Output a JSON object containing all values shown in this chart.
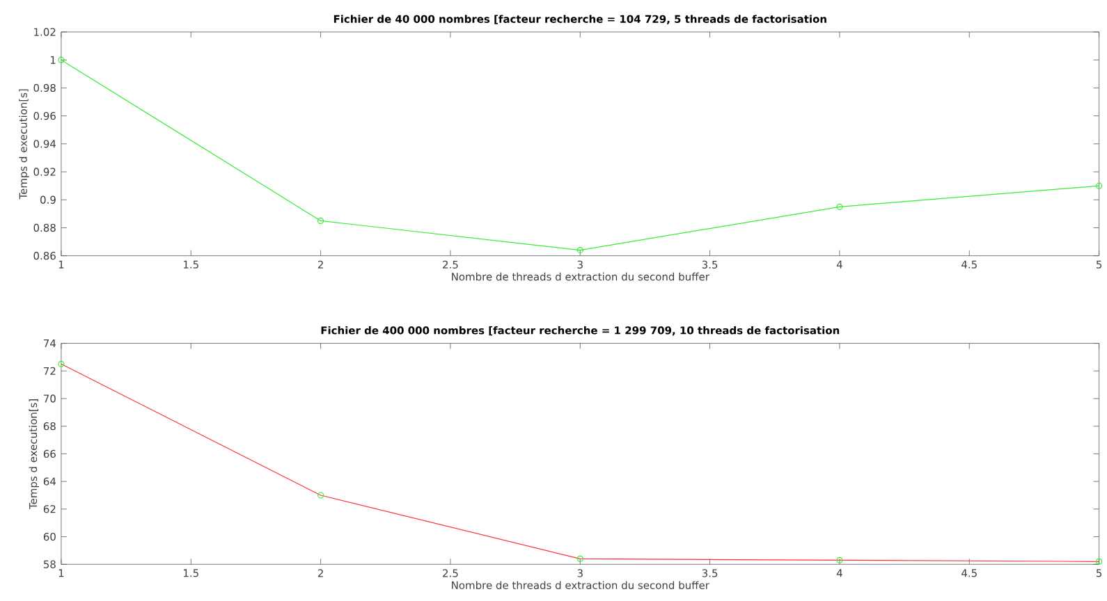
{
  "chart_data": [
    {
      "type": "line",
      "title": "Fichier de 40 000 nombres [facteur recherche = 104 729, 5 threads de factorisation",
      "xlabel": "Nombre de threads d extraction du second buffer",
      "ylabel": "Temps d execution[s]",
      "x": [
        1,
        2,
        3,
        4,
        5
      ],
      "series": [
        {
          "color": "#33ee33",
          "values": [
            1.0,
            0.885,
            0.864,
            0.895,
            0.91
          ]
        }
      ],
      "xlim": [
        1,
        5
      ],
      "xticks": [
        1,
        1.5,
        2,
        2.5,
        3,
        3.5,
        4,
        4.5,
        5
      ],
      "ylim": [
        0.86,
        1.02
      ],
      "yticks": [
        0.86,
        0.88,
        0.9,
        0.92,
        0.94,
        0.96,
        0.98,
        1,
        1.02
      ],
      "marker": "circle"
    },
    {
      "type": "line",
      "title": "Fichier de 400 000 nombres [facteur recherche = 1 299 709, 10 threads de factorisation",
      "xlabel": "Nombre de threads d extraction du second buffer",
      "ylabel": "Temps d execution[s]",
      "x": [
        1,
        2,
        3,
        4,
        5
      ],
      "series": [
        {
          "color": "#ff3333",
          "values": [
            72.5,
            63.0,
            58.4,
            58.3,
            58.2
          ]
        }
      ],
      "xlim": [
        1,
        5
      ],
      "xticks": [
        1,
        1.5,
        2,
        2.5,
        3,
        3.5,
        4,
        4.5,
        5
      ],
      "ylim": [
        58,
        74
      ],
      "yticks": [
        58,
        60,
        62,
        64,
        66,
        68,
        70,
        72,
        74
      ],
      "marker": "circle"
    }
  ]
}
